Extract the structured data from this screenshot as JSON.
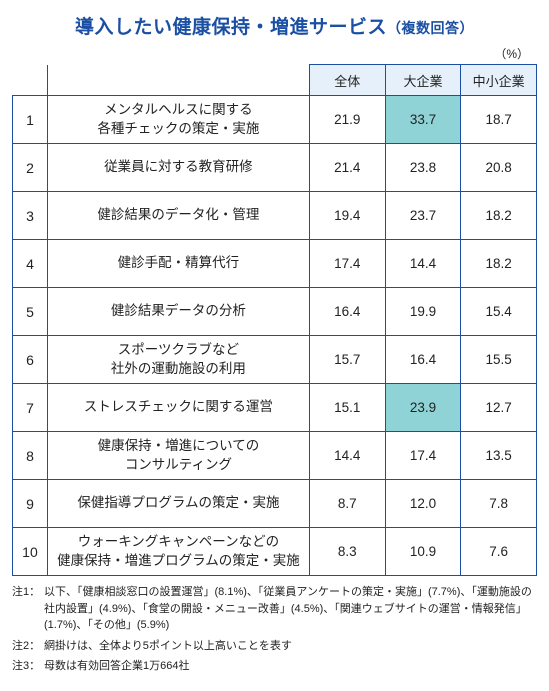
{
  "colors": {
    "title": "#1a4fa3",
    "border": "#1a4fa3",
    "header_bg": "#e6f0fa",
    "highlight_bg": "#8fd3d6",
    "text": "#222222",
    "note": "#222222"
  },
  "title_main": "導入したい健康保持・増進サービス",
  "title_sub": "（複数回答）",
  "unit_label": "（%）",
  "header": {
    "col_all": "全体",
    "col_large": "大企業",
    "col_sme": "中小企業"
  },
  "rows": [
    {
      "rank": "1",
      "label": "メンタルヘルスに関する\n各種チェックの策定・実施",
      "all": "21.9",
      "large": "33.7",
      "sme": "18.7",
      "hl_large": true
    },
    {
      "rank": "2",
      "label": "従業員に対する教育研修",
      "all": "21.4",
      "large": "23.8",
      "sme": "20.8"
    },
    {
      "rank": "3",
      "label": "健診結果のデータ化・管理",
      "all": "19.4",
      "large": "23.7",
      "sme": "18.2"
    },
    {
      "rank": "4",
      "label": "健診手配・精算代行",
      "all": "17.4",
      "large": "14.4",
      "sme": "18.2"
    },
    {
      "rank": "5",
      "label": "健診結果データの分析",
      "all": "16.4",
      "large": "19.9",
      "sme": "15.4"
    },
    {
      "rank": "6",
      "label": "スポーツクラブなど\n社外の運動施設の利用",
      "all": "15.7",
      "large": "16.4",
      "sme": "15.5"
    },
    {
      "rank": "7",
      "label": "ストレスチェックに関する運営",
      "all": "15.1",
      "large": "23.9",
      "sme": "12.7",
      "hl_large": true
    },
    {
      "rank": "8",
      "label": "健康保持・増進についての\nコンサルティング",
      "all": "14.4",
      "large": "17.4",
      "sme": "13.5"
    },
    {
      "rank": "9",
      "label": "保健指導プログラムの策定・実施",
      "all": "8.7",
      "large": "12.0",
      "sme": "7.8"
    },
    {
      "rank": "10",
      "label": "ウォーキングキャンペーンなどの\n健康保持・増進プログラムの策定・実施",
      "all": "8.3",
      "large": "10.9",
      "sme": "7.6"
    }
  ],
  "notes": [
    {
      "key": "注1：",
      "val": "以下、「健康相談窓口の設置運営」(8.1%)、「従業員アンケートの策定・実施」(7.7%)、「運動施設の社内設置」(4.9%)、「食堂の開設・メニュー改善」(4.5%)、「関連ウェブサイトの運営・情報発信」(1.7%)、「その他」(5.9%)"
    },
    {
      "key": "注2：",
      "val": "網掛けは、全体より5ポイント以上高いことを表す"
    },
    {
      "key": "注3：",
      "val": "母数は有効回答企業1万664社"
    }
  ]
}
